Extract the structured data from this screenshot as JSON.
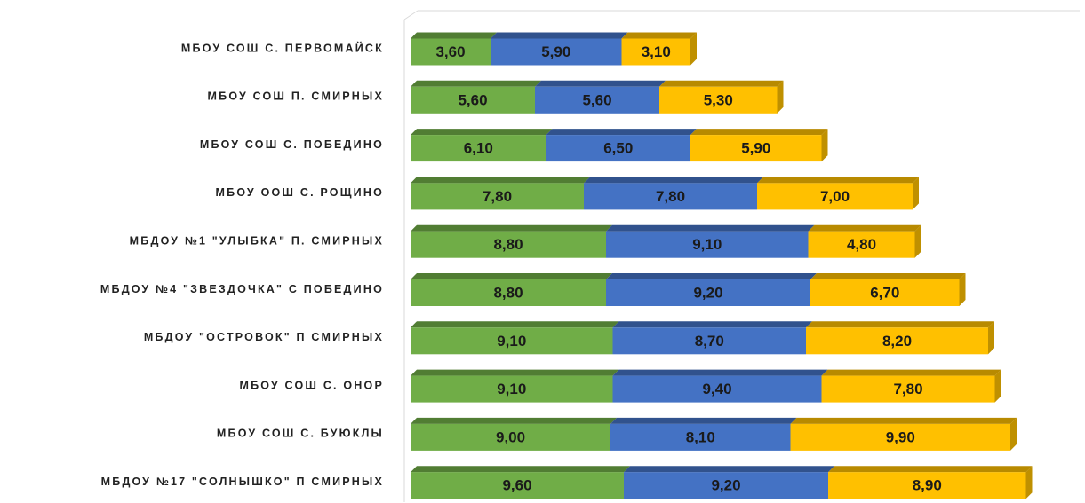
{
  "chart_data": {
    "type": "bar",
    "orientation": "horizontal",
    "stacked": true,
    "categories": [
      "МБОУ СОШ С. ПЕРВОМАЙСК",
      "МБОУ СОШ П. СМИРНЫХ",
      "МБОУ СОШ С. ПОБЕДИНО",
      "МБОУ ООШ С. РОЩИНО",
      "МБДОУ №1 \"УЛЫБКА\" П. СМИРНЫХ",
      "МБДОУ №4 \"ЗВЕЗДОЧКА\" С ПОБЕДИНО",
      "МБДОУ \"ОСТРОВОК\" П СМИРНЫХ",
      "МБОУ СОШ С. ОНОР",
      "МБОУ СОШ С. БУЮКЛЫ",
      "МБДОУ №17 \"СОЛНЫШКО\" П СМИРНЫХ"
    ],
    "series": [
      {
        "color": "#70ad47",
        "values": [
          3.6,
          5.6,
          6.1,
          7.8,
          8.8,
          8.8,
          9.1,
          9.1,
          9.0,
          9.6
        ],
        "value_labels": [
          "3,60",
          "5,60",
          "6,10",
          "7,80",
          "8,80",
          "8,80",
          "9,10",
          "9,10",
          "9,00",
          "9,60"
        ]
      },
      {
        "color": "#4472c4",
        "values": [
          5.9,
          5.6,
          6.5,
          7.8,
          9.1,
          9.2,
          8.7,
          9.4,
          8.1,
          9.2
        ],
        "value_labels": [
          "5,90",
          "5,60",
          "6,50",
          "7,80",
          "9,10",
          "9,20",
          "8,70",
          "9,40",
          "8,10",
          "9,20"
        ]
      },
      {
        "color": "#ffc000",
        "values": [
          3.1,
          5.3,
          5.9,
          7.0,
          4.8,
          6.7,
          8.2,
          7.8,
          9.9,
          8.9
        ],
        "value_labels": [
          "3,10",
          "5,30",
          "5,90",
          "7,00",
          "4,80",
          "6,70",
          "8,20",
          "7,80",
          "9,90",
          "8,90"
        ]
      }
    ],
    "xlim": [
      0,
      30
    ]
  }
}
